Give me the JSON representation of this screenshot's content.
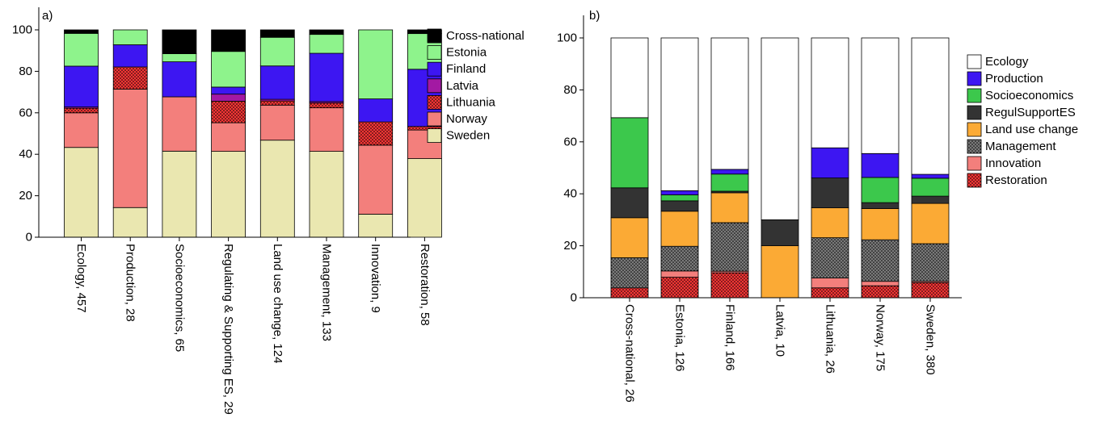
{
  "chart_data": [
    {
      "panel_label": "a)",
      "type": "bar",
      "stacked": true,
      "ylim": [
        0,
        100
      ],
      "yticks": [
        0,
        20,
        40,
        60,
        80,
        100
      ],
      "grid": false,
      "legend_position": "right",
      "categories": [
        "Ecology, 457",
        "Production, 28",
        "Socioeconomics, 65",
        "Regulating & Supporting ES, 29",
        "Land use change, 124",
        "Management, 133",
        "Innovation, 9",
        "Restoration, 58"
      ],
      "series": [
        {
          "name": "Sweden",
          "color": "#eae7b0",
          "pattern": "none",
          "values": [
            43.3,
            14.3,
            41.5,
            41.4,
            46.8,
            41.4,
            11.1,
            37.9
          ]
        },
        {
          "name": "Norway",
          "color": "#f37f7c",
          "pattern": "none",
          "values": [
            16.7,
            57.1,
            26.2,
            13.8,
            16.9,
            21.0,
            33.3,
            13.8
          ]
        },
        {
          "name": "Lithuania",
          "color": "#f33535",
          "pattern": "dots",
          "values": [
            2.2,
            10.7,
            0,
            10.4,
            2.0,
            2.3,
            11.2,
            1.7
          ]
        },
        {
          "name": "Latvia",
          "color": "#a319a3",
          "pattern": "none",
          "values": [
            0.6,
            0,
            0,
            3.4,
            0.8,
            0.7,
            0,
            0
          ]
        },
        {
          "name": "Finland",
          "color": "#3d16f2",
          "pattern": "none",
          "values": [
            19.7,
            10.7,
            16.9,
            3.4,
            16.1,
            23.3,
            11.1,
            27.6
          ]
        },
        {
          "name": "Estonia",
          "color": "#8ef38c",
          "pattern": "none",
          "values": [
            15.8,
            7.2,
            3.9,
            17.2,
            13.8,
            9.1,
            33.3,
            17.2
          ]
        },
        {
          "name": "Cross-national",
          "color": "#000000",
          "pattern": "none",
          "values": [
            1.7,
            0,
            11.5,
            10.4,
            3.6,
            2.2,
            0,
            1.8
          ]
        }
      ],
      "legend": [
        "Cross-national",
        "Estonia",
        "Finland",
        "Latvia",
        "Lithuania",
        "Norway",
        "Sweden"
      ]
    },
    {
      "panel_label": "b)",
      "type": "bar",
      "stacked": true,
      "ylim": [
        0,
        100
      ],
      "yticks": [
        0,
        20,
        40,
        60,
        80,
        100
      ],
      "grid": false,
      "legend_position": "right",
      "categories": [
        "Cross-national, 26",
        "Estonia, 126",
        "Finland, 166",
        "Latvia, 10",
        "Lithuania, 26",
        "Norway, 175",
        "Sweden, 380"
      ],
      "series": [
        {
          "name": "Restoration",
          "color": "#f33535",
          "pattern": "dots",
          "values": [
            3.8,
            7.9,
            9.6,
            0,
            3.8,
            4.6,
            5.8
          ]
        },
        {
          "name": "Innovation",
          "color": "#f37f7c",
          "pattern": "none",
          "values": [
            0,
            2.4,
            0.6,
            0,
            3.8,
            1.7,
            0.5
          ]
        },
        {
          "name": "Management",
          "color": "#7a7a7a",
          "pattern": "dots",
          "values": [
            11.6,
            9.5,
            18.7,
            0,
            15.5,
            16.0,
            14.5
          ]
        },
        {
          "name": "Land use change",
          "color": "#fbaa35",
          "pattern": "none",
          "values": [
            15.4,
            13.5,
            11.5,
            20.0,
            11.5,
            12.0,
            15.5
          ]
        },
        {
          "name": "RegulSupportES",
          "color": "#333333",
          "pattern": "none",
          "values": [
            11.5,
            4.0,
            0.6,
            10.0,
            11.5,
            2.3,
            2.8
          ]
        },
        {
          "name": "Socioeconomics",
          "color": "#3cc84c",
          "pattern": "none",
          "values": [
            27.0,
            2.3,
            6.6,
            0,
            0,
            9.7,
            6.9
          ]
        },
        {
          "name": "Production",
          "color": "#3d16f2",
          "pattern": "none",
          "values": [
            0,
            1.6,
            1.8,
            0,
            11.6,
            9.2,
            1.5
          ]
        },
        {
          "name": "Ecology",
          "color": "#ffffff",
          "pattern": "none",
          "values": [
            30.7,
            58.8,
            50.6,
            70.0,
            42.3,
            44.5,
            52.5
          ]
        }
      ],
      "legend": [
        "Ecology",
        "Production",
        "Socioeconomics",
        "RegulSupportES",
        "Land use change",
        "Management",
        "Innovation",
        "Restoration"
      ]
    }
  ]
}
